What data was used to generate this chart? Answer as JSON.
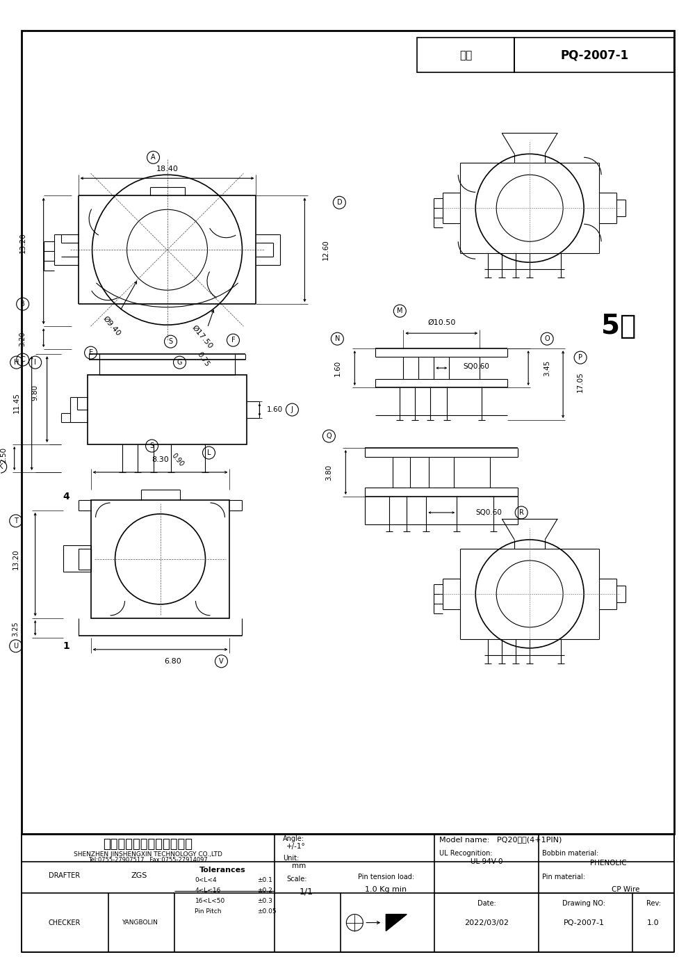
{
  "title": "PQ-2007-1",
  "bg_color": "#ffffff",
  "line_color": "#000000",
  "type_label": "型号",
  "type_value": "PQ-2007-1",
  "company_cn": "深圳市金盛鑫科技有限公司",
  "company_en": "SHENZHEN JINSHENGXIN TECHNOLOGY CO.,LTD",
  "tel": "Tel:0755-27907517   Fax:0755-27914097",
  "model_name": "PQ20立式(4+1PIN)",
  "drafter": "DRAFTER",
  "drafter_name": "ZGS",
  "checker": "CHECKER",
  "checker_name": "YANGBOLIN",
  "date": "2022/03/02",
  "drawing_no": "PQ-2007-1",
  "rev": "1.0"
}
